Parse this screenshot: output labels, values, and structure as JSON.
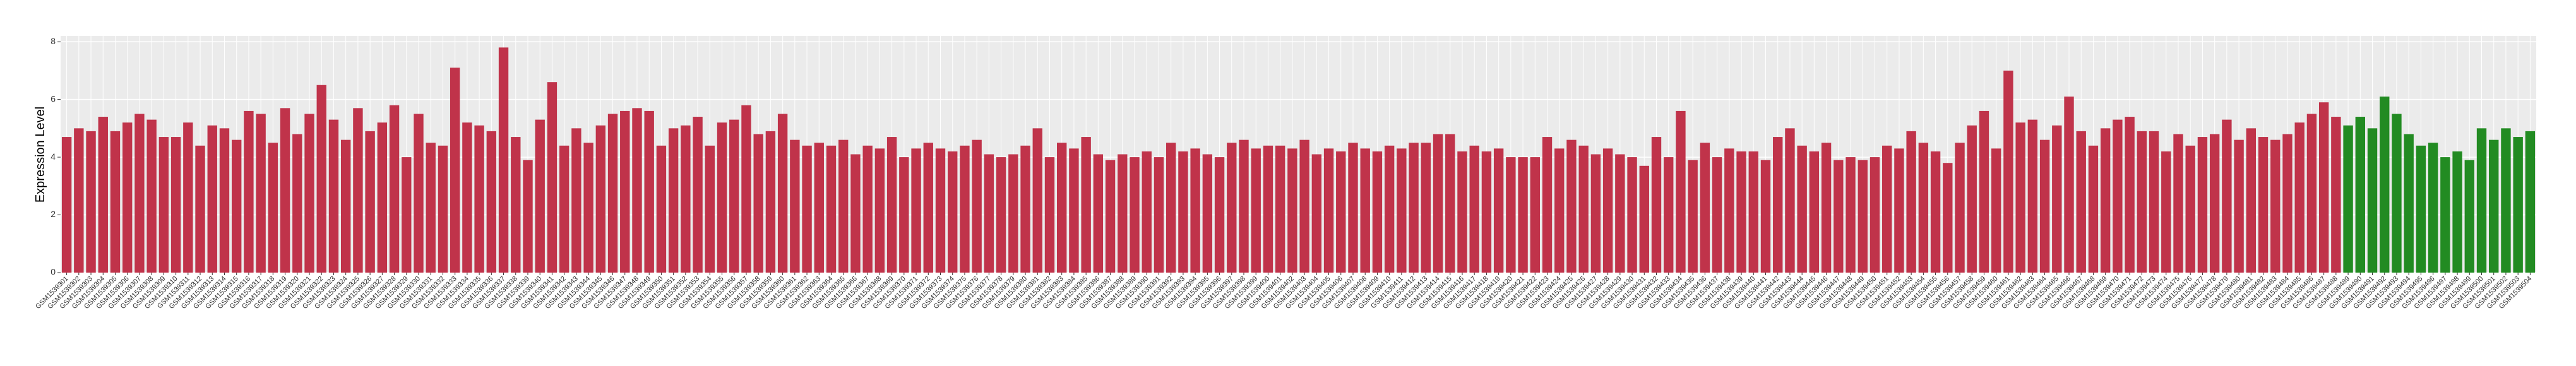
{
  "chart_data": {
    "type": "bar",
    "y_label": "Expression Level",
    "ylim": [
      0,
      8.2
    ],
    "yticks": [
      0,
      2,
      4,
      6,
      8
    ],
    "grid": true,
    "categories": [
      "GSM1539301",
      "GSM1539302",
      "GSM1539303",
      "GSM1539304",
      "GSM1539305",
      "GSM1539306",
      "GSM1539307",
      "GSM1539308",
      "GSM1539309",
      "GSM1539310",
      "GSM1539311",
      "GSM1539312",
      "GSM1539313",
      "GSM1539314",
      "GSM1539315",
      "GSM1539316",
      "GSM1539317",
      "GSM1539318",
      "GSM1539319",
      "GSM1539320",
      "GSM1539321",
      "GSM1539322",
      "GSM1539323",
      "GSM1539324",
      "GSM1539325",
      "GSM1539326",
      "GSM1539327",
      "GSM1539328",
      "GSM1539329",
      "GSM1539330",
      "GSM1539331",
      "GSM1539332",
      "GSM1539333",
      "GSM1539334",
      "GSM1539335",
      "GSM1539336",
      "GSM1539337",
      "GSM1539338",
      "GSM1539339",
      "GSM1539340",
      "GSM1539341",
      "GSM1539342",
      "GSM1539343",
      "GSM1539344",
      "GSM1539345",
      "GSM1539346",
      "GSM1539347",
      "GSM1539348",
      "GSM1539349",
      "GSM1539350",
      "GSM1539351",
      "GSM1539352",
      "GSM1539353",
      "GSM1539354",
      "GSM1539355",
      "GSM1539356",
      "GSM1539357",
      "GSM1539358",
      "GSM1539359",
      "GSM1539360",
      "GSM1539361",
      "GSM1539362",
      "GSM1539363",
      "GSM1539364",
      "GSM1539365",
      "GSM1539366",
      "GSM1539367",
      "GSM1539368",
      "GSM1539369",
      "GSM1539370",
      "GSM1539371",
      "GSM1539372",
      "GSM1539373",
      "GSM1539374",
      "GSM1539375",
      "GSM1539376",
      "GSM1539377",
      "GSM1539378",
      "GSM1539379",
      "GSM1539380",
      "GSM1539381",
      "GSM1539382",
      "GSM1539383",
      "GSM1539384",
      "GSM1539385",
      "GSM1539386",
      "GSM1539387",
      "GSM1539388",
      "GSM1539389",
      "GSM1539390",
      "GSM1539391",
      "GSM1539392",
      "GSM1539393",
      "GSM1539394",
      "GSM1539395",
      "GSM1539396",
      "GSM1539397",
      "GSM1539398",
      "GSM1539399",
      "GSM1539400",
      "GSM1539401",
      "GSM1539402",
      "GSM1539403",
      "GSM1539404",
      "GSM1539405",
      "GSM1539406",
      "GSM1539407",
      "GSM1539408",
      "GSM1539409",
      "GSM1539410",
      "GSM1539411",
      "GSM1539412",
      "GSM1539413",
      "GSM1539414",
      "GSM1539415",
      "GSM1539416",
      "GSM1539417",
      "GSM1539418",
      "GSM1539419",
      "GSM1539420",
      "GSM1539421",
      "GSM1539422",
      "GSM1539423",
      "GSM1539424",
      "GSM1539425",
      "GSM1539426",
      "GSM1539427",
      "GSM1539428",
      "GSM1539429",
      "GSM1539430",
      "GSM1539431",
      "GSM1539432",
      "GSM1539433",
      "GSM1539434",
      "GSM1539435",
      "GSM1539436",
      "GSM1539437",
      "GSM1539438",
      "GSM1539439",
      "GSM1539440",
      "GSM1539441",
      "GSM1539442",
      "GSM1539443",
      "GSM1539444",
      "GSM1539445",
      "GSM1539446",
      "GSM1539447",
      "GSM1539448",
      "GSM1539449",
      "GSM1539450",
      "GSM1539451",
      "GSM1539452",
      "GSM1539453",
      "GSM1539454",
      "GSM1539455",
      "GSM1539456",
      "GSM1539457",
      "GSM1539458",
      "GSM1539459",
      "GSM1539460",
      "GSM1539461",
      "GSM1539462",
      "GSM1539463",
      "GSM1539464",
      "GSM1539465",
      "GSM1539466",
      "GSM1539467",
      "GSM1539468",
      "GSM1539469",
      "GSM1539470",
      "GSM1539471",
      "GSM1539472",
      "GSM1539473",
      "GSM1539474",
      "GSM1539475",
      "GSM1539476",
      "GSM1539477",
      "GSM1539478",
      "GSM1539479",
      "GSM1539480",
      "GSM1539481",
      "GSM1539482",
      "GSM1539483",
      "GSM1539484",
      "GSM1539485",
      "GSM1539486",
      "GSM1539487",
      "GSM1539488",
      "GSM1539489",
      "GSM1539490",
      "GSM1539491",
      "GSM1539492",
      "GSM1539493",
      "GSM1539494",
      "GSM1539495",
      "GSM1539496",
      "GSM1539497",
      "GSM1539498",
      "GSM1539499",
      "GSM1539500",
      "GSM1539501",
      "GSM1539502",
      "GSM1539503",
      "GSM1539504"
    ],
    "values": [
      4.7,
      5.0,
      4.9,
      5.4,
      4.9,
      5.2,
      5.5,
      5.3,
      4.7,
      4.7,
      5.2,
      4.4,
      5.1,
      5.0,
      4.6,
      5.6,
      5.5,
      4.5,
      5.7,
      4.8,
      5.5,
      6.5,
      5.3,
      4.6,
      5.7,
      4.9,
      5.2,
      5.8,
      4.0,
      5.5,
      4.5,
      4.4,
      7.1,
      5.2,
      5.1,
      4.9,
      7.8,
      4.7,
      3.9,
      5.3,
      6.6,
      4.4,
      5.0,
      4.5,
      5.1,
      5.5,
      5.6,
      5.7,
      5.6,
      4.4,
      5.0,
      5.1,
      5.4,
      4.4,
      5.2,
      5.3,
      5.8,
      4.8,
      4.9,
      5.5,
      4.6,
      4.4,
      4.5,
      4.4,
      4.6,
      4.1,
      4.4,
      4.3,
      4.7,
      4.0,
      4.3,
      4.5,
      4.3,
      4.2,
      4.4,
      4.6,
      4.1,
      4.0,
      4.1,
      4.4,
      5.0,
      4.0,
      4.5,
      4.3,
      4.7,
      4.1,
      3.9,
      4.1,
      4.0,
      4.2,
      4.0,
      4.5,
      4.2,
      4.3,
      4.1,
      4.0,
      4.5,
      4.6,
      4.3,
      4.4,
      4.4,
      4.3,
      4.6,
      4.1,
      4.3,
      4.2,
      4.5,
      4.3,
      4.2,
      4.4,
      4.3,
      4.5,
      4.5,
      4.8,
      4.8,
      4.2,
      4.4,
      4.2,
      4.3,
      4.0,
      4.0,
      4.0,
      4.7,
      4.3,
      4.6,
      4.4,
      4.1,
      4.3,
      4.1,
      4.0,
      3.7,
      4.7,
      4.0,
      5.6,
      3.9,
      4.5,
      4.0,
      4.3,
      4.2,
      4.2,
      3.9,
      4.7,
      5.0,
      4.4,
      4.2,
      4.5,
      3.9,
      4.0,
      3.9,
      4.0,
      4.4,
      4.3,
      4.9,
      4.5,
      4.2,
      3.8,
      4.5,
      5.1,
      5.6,
      4.3,
      7.0,
      5.2,
      5.3,
      4.6,
      5.1,
      6.1,
      4.9,
      4.4,
      5.0,
      5.3,
      5.4,
      4.9,
      4.9,
      4.2,
      4.8,
      4.4,
      4.7,
      4.8,
      5.3,
      4.6,
      5.0,
      4.7,
      4.6,
      4.8,
      5.2,
      5.5,
      5.9,
      5.4,
      5.1,
      5.4,
      5.0,
      6.1,
      5.5,
      4.8,
      4.4,
      4.5,
      4.0,
      4.2,
      3.9,
      5.0,
      4.6,
      5.0,
      4.7,
      4.9
    ],
    "colors": [
      "#c0334a",
      "#c0334a",
      "#c0334a",
      "#c0334a",
      "#c0334a",
      "#c0334a",
      "#c0334a",
      "#c0334a",
      "#c0334a",
      "#c0334a",
      "#c0334a",
      "#c0334a",
      "#c0334a",
      "#c0334a",
      "#c0334a",
      "#c0334a",
      "#c0334a",
      "#c0334a",
      "#c0334a",
      "#c0334a",
      "#c0334a",
      "#c0334a",
      "#c0334a",
      "#c0334a",
      "#c0334a",
      "#c0334a",
      "#c0334a",
      "#c0334a",
      "#c0334a",
      "#c0334a",
      "#c0334a",
      "#c0334a",
      "#c0334a",
      "#c0334a",
      "#c0334a",
      "#c0334a",
      "#c0334a",
      "#c0334a",
      "#c0334a",
      "#c0334a",
      "#c0334a",
      "#c0334a",
      "#c0334a",
      "#c0334a",
      "#c0334a",
      "#c0334a",
      "#c0334a",
      "#c0334a",
      "#c0334a",
      "#c0334a",
      "#c0334a",
      "#c0334a",
      "#c0334a",
      "#c0334a",
      "#c0334a",
      "#c0334a",
      "#c0334a",
      "#c0334a",
      "#c0334a",
      "#c0334a",
      "#c0334a",
      "#c0334a",
      "#c0334a",
      "#c0334a",
      "#c0334a",
      "#c0334a",
      "#c0334a",
      "#c0334a",
      "#c0334a",
      "#c0334a",
      "#c0334a",
      "#c0334a",
      "#c0334a",
      "#c0334a",
      "#c0334a",
      "#c0334a",
      "#c0334a",
      "#c0334a",
      "#c0334a",
      "#c0334a",
      "#c0334a",
      "#c0334a",
      "#c0334a",
      "#c0334a",
      "#c0334a",
      "#c0334a",
      "#c0334a",
      "#c0334a",
      "#c0334a",
      "#c0334a",
      "#c0334a",
      "#c0334a",
      "#c0334a",
      "#c0334a",
      "#c0334a",
      "#c0334a",
      "#c0334a",
      "#c0334a",
      "#c0334a",
      "#c0334a",
      "#c0334a",
      "#c0334a",
      "#c0334a",
      "#c0334a",
      "#c0334a",
      "#c0334a",
      "#c0334a",
      "#c0334a",
      "#c0334a",
      "#c0334a",
      "#c0334a",
      "#c0334a",
      "#c0334a",
      "#c0334a",
      "#c0334a",
      "#c0334a",
      "#c0334a",
      "#c0334a",
      "#c0334a",
      "#c0334a",
      "#c0334a",
      "#c0334a",
      "#c0334a",
      "#c0334a",
      "#c0334a",
      "#c0334a",
      "#c0334a",
      "#c0334a",
      "#c0334a",
      "#c0334a",
      "#c0334a",
      "#c0334a",
      "#c0334a",
      "#c0334a",
      "#c0334a",
      "#c0334a",
      "#c0334a",
      "#c0334a",
      "#c0334a",
      "#c0334a",
      "#c0334a",
      "#c0334a",
      "#c0334a",
      "#c0334a",
      "#c0334a",
      "#c0334a",
      "#c0334a",
      "#c0334a",
      "#c0334a",
      "#c0334a",
      "#c0334a",
      "#c0334a",
      "#c0334a",
      "#c0334a",
      "#c0334a",
      "#c0334a",
      "#c0334a",
      "#c0334a",
      "#c0334a",
      "#c0334a",
      "#c0334a",
      "#c0334a",
      "#c0334a",
      "#c0334a",
      "#c0334a",
      "#c0334a",
      "#c0334a",
      "#c0334a",
      "#c0334a",
      "#c0334a",
      "#c0334a",
      "#c0334a",
      "#c0334a",
      "#c0334a",
      "#c0334a",
      "#c0334a",
      "#c0334a",
      "#c0334a",
      "#c0334a",
      "#c0334a",
      "#c0334a",
      "#c0334a",
      "#c0334a",
      "#c0334a",
      "#c0334a",
      "#c0334a",
      "#c0334a",
      "#c0334a",
      "#228b22",
      "#228b22",
      "#228b22",
      "#228b22",
      "#228b22",
      "#228b22",
      "#228b22",
      "#228b22",
      "#228b22",
      "#228b22",
      "#228b22",
      "#228b22",
      "#228b22",
      "#228b22",
      "#228b22",
      "#228b22",
      "#228b22",
      "#228b22",
      "#228b22",
      "#228b22",
      "#228b22"
    ]
  }
}
